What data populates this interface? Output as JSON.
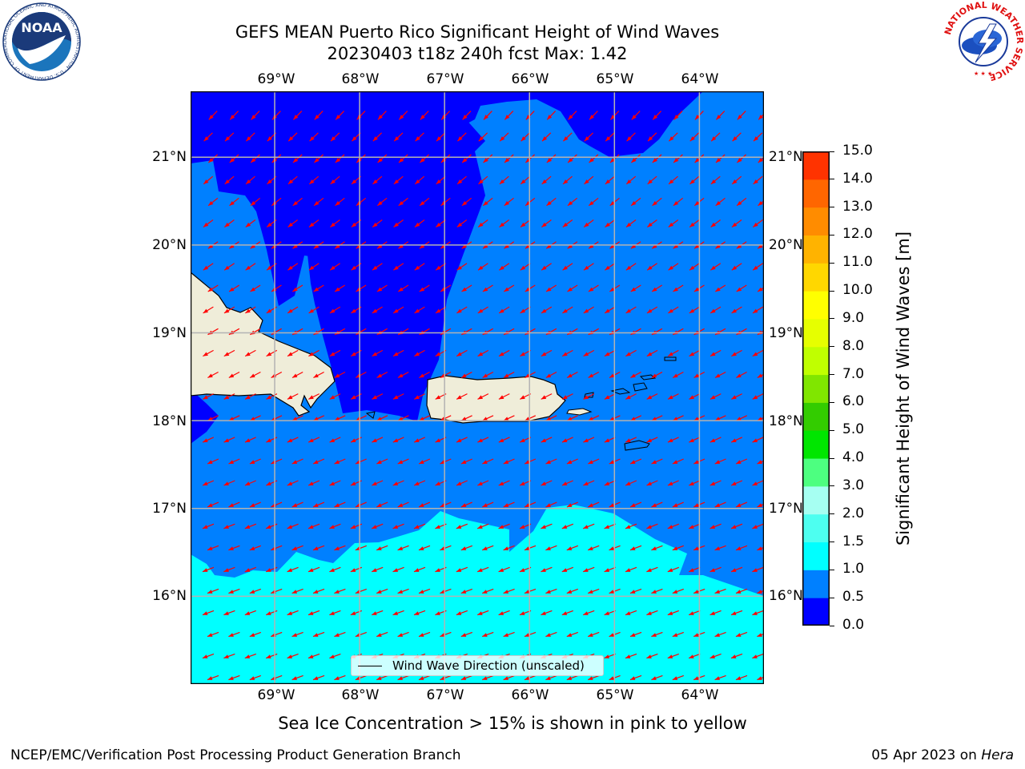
{
  "title": {
    "line1": "GEFS MEAN Puerto Rico Significant Height of Wind Waves",
    "line2": "20230403 t18z 240h fcst   Max: 1.42"
  },
  "map": {
    "lon_labels": [
      "69°W",
      "68°W",
      "67°W",
      "66°W",
      "65°W",
      "64°W"
    ],
    "lat_labels": [
      "21°N",
      "20°N",
      "19°N",
      "18°N",
      "17°N",
      "16°N"
    ],
    "lon_values": [
      -69,
      -68,
      -67,
      -66,
      -65,
      -64
    ],
    "lat_values": [
      21,
      20,
      19,
      18,
      17,
      16
    ],
    "extent": {
      "lon_min": -69.99,
      "lon_max": -63.24,
      "lat_min": 15.0,
      "lat_max": 21.75
    },
    "colors": {
      "band_0_0_5": "#0000ff",
      "band_0_5_1_0": "#0080ff",
      "band_1_0_1_5": "#00ffff",
      "land": "#efedd9",
      "arrow": "#ff0000",
      "grid": "#b3b3b3"
    },
    "legend_label": "Wind Wave Direction (unscaled)"
  },
  "colorbar": {
    "label": "Significant Height of Wind Waves [m]",
    "ticks": [
      "0.0",
      "0.5",
      "1.0",
      "1.5",
      "2.0",
      "3.0",
      "4.0",
      "5.0",
      "6.0",
      "7.0",
      "8.0",
      "9.0",
      "10.0",
      "11.0",
      "12.0",
      "13.0",
      "14.0",
      "15.0"
    ],
    "colors": [
      "#0000ff",
      "#0080ff",
      "#00ffff",
      "#4dfff0",
      "#a6fff2",
      "#4dff80",
      "#00e600",
      "#33cc00",
      "#80e600",
      "#c0ff00",
      "#e6ff00",
      "#ffff00",
      "#ffd700",
      "#ffb300",
      "#ff8c00",
      "#ff6600",
      "#ff3300",
      "#ff0000"
    ]
  },
  "ice_note": "Sea Ice Concentration > 15% is shown in pink to yellow",
  "footer": {
    "left": "NCEP/EMC/Verification Post Processing Product Generation Branch",
    "right_prefix": "05 Apr 2023 on ",
    "right_host": "Hera"
  },
  "logos": {
    "noaa": "NOAA",
    "noaa_ring": "NATIONAL OCEANIC AND ATMOSPHERIC ADMINISTRATION · U.S. DEPARTMENT OF COMMERCE",
    "nws_ring": "NATIONAL WEATHER SERVICE"
  }
}
